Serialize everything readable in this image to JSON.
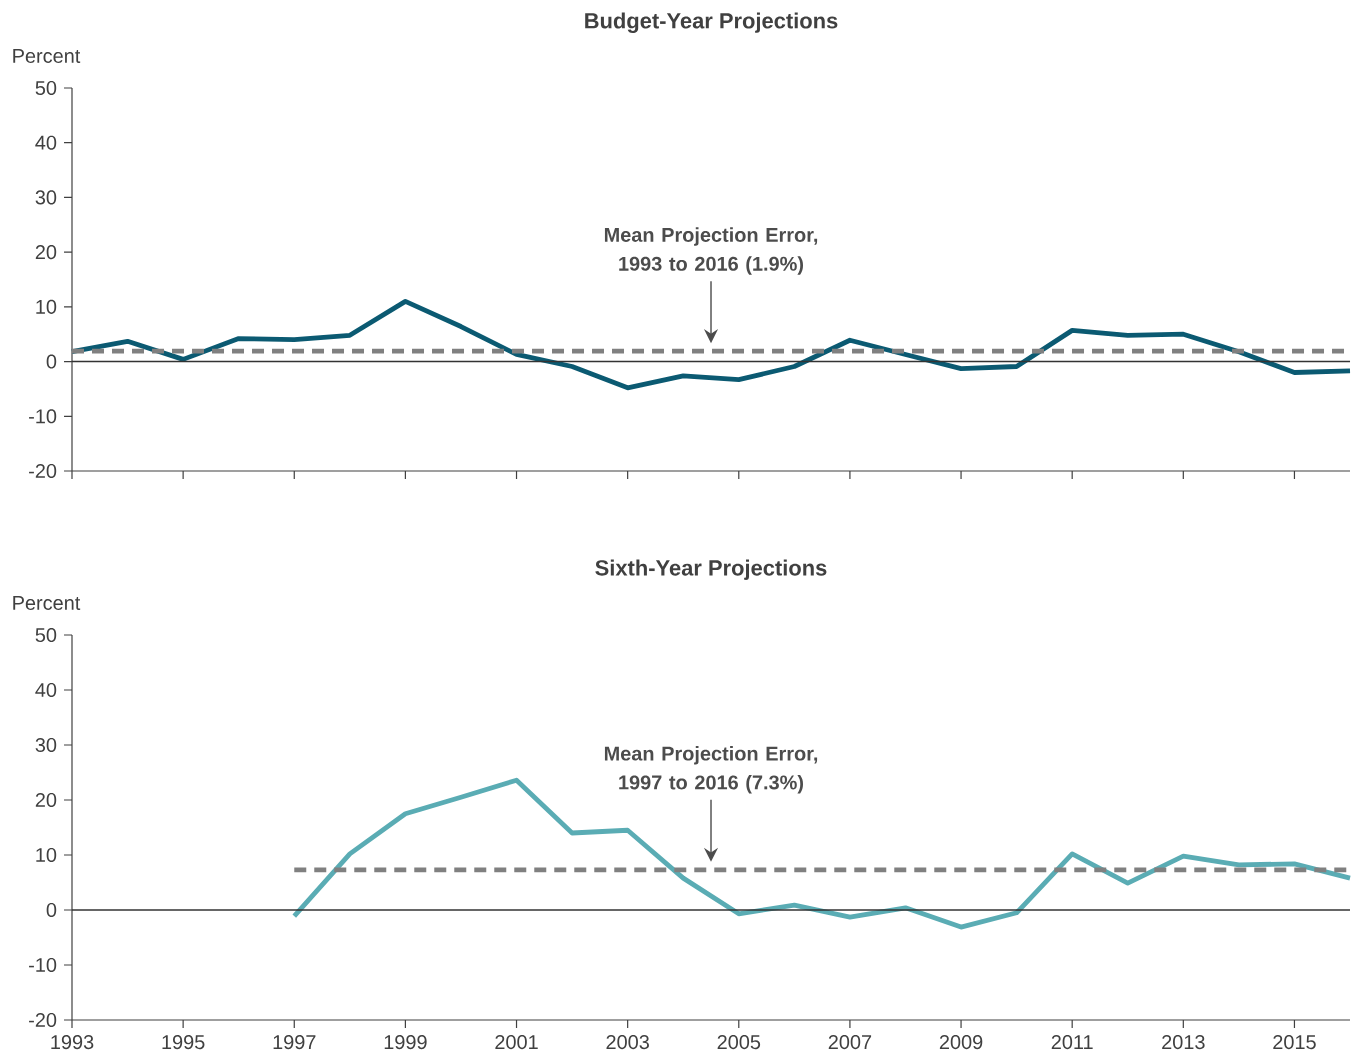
{
  "chart_data": [
    {
      "type": "line",
      "title": "Budget-Year Projections",
      "ylabel": "Percent",
      "x": [
        1993,
        1994,
        1995,
        1996,
        1997,
        1998,
        1999,
        2000,
        2001,
        2002,
        2003,
        2004,
        2005,
        2006,
        2007,
        2008,
        2009,
        2010,
        2011,
        2012,
        2013,
        2014,
        2015,
        2016
      ],
      "series": [
        {
          "color": "#0b5a72",
          "line_style": "solid",
          "values": [
            1.8,
            3.7,
            0.4,
            4.2,
            4.0,
            4.8,
            11.0,
            6.4,
            1.3,
            -0.9,
            -4.8,
            -2.6,
            -3.3,
            -0.9,
            3.9,
            1.3,
            -1.3,
            -0.9,
            5.7,
            4.8,
            5.0,
            1.8,
            -2.0,
            -1.7
          ]
        },
        {
          "color": "#808080",
          "line_style": "dashed",
          "x": [
            1993,
            2016
          ],
          "values": [
            1.9,
            1.9
          ]
        }
      ],
      "ref_lines": [
        {
          "axis": "y",
          "value": 0,
          "color": "#333333",
          "line_style": "solid"
        }
      ],
      "annotations": [
        "Mean Projection Error, 1993 to 2016 (1.9%)"
      ],
      "xlim": [
        1993,
        2016
      ],
      "xticks": [
        1993,
        1995,
        1997,
        1999,
        2001,
        2003,
        2005,
        2007,
        2009,
        2011,
        2013,
        2015
      ],
      "ylim": [
        -20,
        50
      ],
      "yticks": [
        -20,
        -10,
        0,
        10,
        20,
        30,
        40,
        50
      ],
      "tick_labels": "y",
      "grid": false,
      "marker": "none"
    },
    {
      "type": "line",
      "title": "Sixth-Year Projections",
      "ylabel": "Percent",
      "x": [
        1997,
        1998,
        1999,
        2000,
        2001,
        2002,
        2003,
        2004,
        2005,
        2006,
        2007,
        2008,
        2009,
        2010,
        2011,
        2012,
        2013,
        2014,
        2015,
        2016
      ],
      "series": [
        {
          "color": "#5aacb4",
          "line_style": "solid",
          "values": [
            -1.1,
            10.2,
            17.5,
            20.5,
            23.6,
            14.0,
            14.5,
            5.8,
            -0.7,
            0.9,
            -1.3,
            0.4,
            -3.1,
            -0.5,
            10.2,
            4.9,
            9.8,
            8.2,
            8.4,
            5.8
          ]
        },
        {
          "color": "#808080",
          "line_style": "dashed",
          "x": [
            1997,
            2016
          ],
          "values": [
            7.3,
            7.3
          ]
        }
      ],
      "ref_lines": [
        {
          "axis": "y",
          "value": 0,
          "color": "#333333",
          "line_style": "solid"
        }
      ],
      "annotations": [
        "Mean Projection Error, 1997 to 2016 (7.3%)"
      ],
      "xlim": [
        1993,
        2016
      ],
      "xticks": [
        1993,
        1995,
        1997,
        1999,
        2001,
        2003,
        2005,
        2007,
        2009,
        2011,
        2013,
        2015
      ],
      "ylim": [
        -20,
        50
      ],
      "yticks": [
        -20,
        -10,
        0,
        10,
        20,
        30,
        40,
        50
      ],
      "grid": false,
      "marker": "none"
    }
  ]
}
